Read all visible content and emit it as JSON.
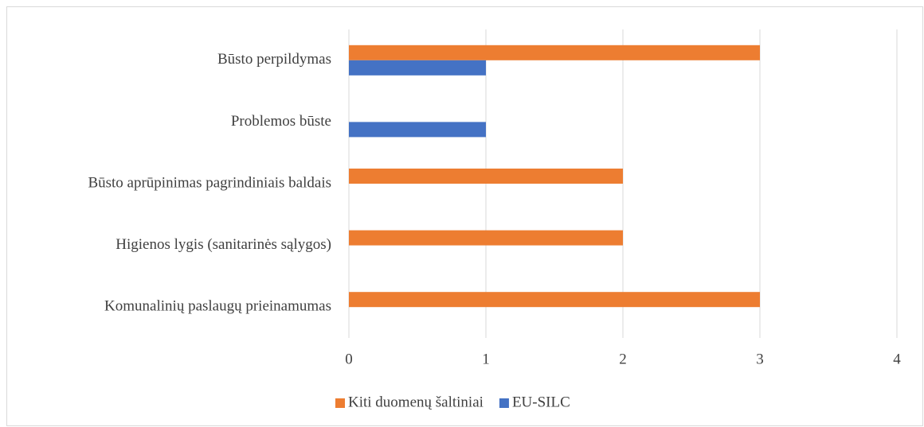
{
  "chart_data": {
    "type": "bar",
    "orientation": "horizontal",
    "categories": [
      "Būsto perpildymas",
      "Problemos būste",
      "Būsto aprūpinimas pagrindiniais baldais",
      "Higienos lygis (sanitarinės sąlygos)",
      "Komunalinių paslaugų prieinamumas"
    ],
    "series": [
      {
        "name": "Kiti duomenų šaltiniai",
        "color": "#ed7d31",
        "values": [
          3,
          0,
          2,
          2,
          3
        ]
      },
      {
        "name": "EU-SILC",
        "color": "#4472c4",
        "values": [
          1,
          1,
          0,
          0,
          0
        ]
      }
    ],
    "xlim": [
      0,
      4
    ],
    "xticks": [
      0,
      1,
      2,
      3,
      4
    ],
    "grid": true,
    "legend": "bottom"
  }
}
